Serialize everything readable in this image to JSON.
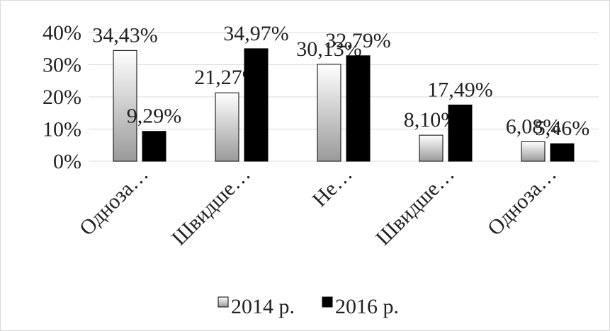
{
  "chart_data": {
    "type": "bar",
    "categories": [
      "Одноза…",
      "Швидше…",
      "Не…",
      "Швидше…",
      "Одноза…"
    ],
    "series": [
      {
        "name": "2014 р.",
        "color": "gradient",
        "values": [
          34.43,
          21.27,
          30.13,
          8.1,
          6.08
        ],
        "value_labels": [
          "34,43%",
          "21,27%",
          "30,13%",
          "8,10%",
          "6,08%"
        ]
      },
      {
        "name": "2016 р.",
        "color": "#000000",
        "values": [
          9.29,
          34.97,
          32.79,
          17.49,
          5.46
        ],
        "value_labels": [
          "9,29%",
          "34,97%",
          "32,79%",
          "17,49%",
          "5,46%"
        ]
      }
    ],
    "ylim": [
      0,
      40
    ],
    "yticks": [
      {
        "value": 0,
        "label": "0%"
      },
      {
        "value": 10,
        "label": "10%"
      },
      {
        "value": 20,
        "label": "20%"
      },
      {
        "value": 30,
        "label": "30%"
      },
      {
        "value": 40,
        "label": "40%"
      }
    ],
    "grid": true,
    "legend": "bottom"
  }
}
